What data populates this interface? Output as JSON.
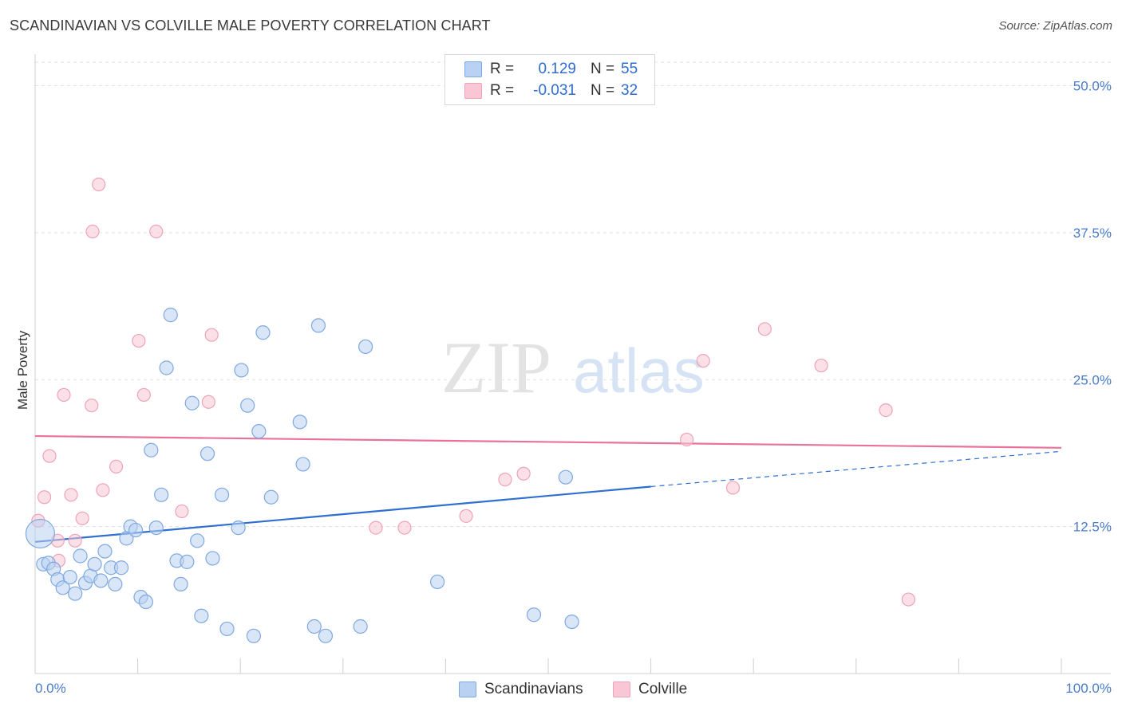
{
  "header": {
    "title": "SCANDINAVIAN VS COLVILLE MALE POVERTY CORRELATION CHART",
    "source": "Source: ZipAtlas.com"
  },
  "watermark": {
    "zip": "ZIP",
    "atlas": "atlas"
  },
  "legend": {
    "rows": [
      {
        "r_label": "R =",
        "r_value": "0.129",
        "n_label": "N =",
        "n_value": "55"
      },
      {
        "r_label": "R =",
        "r_value": "-0.031",
        "n_label": "N =",
        "n_value": "32"
      }
    ]
  },
  "bottom_legend": {
    "a": "Scandinavians",
    "b": "Colville"
  },
  "colors": {
    "blue_fill": "#b9d1f3",
    "blue_stroke": "#7fa8e0",
    "blue_line": "#2f6fd0",
    "pink_fill": "#f8c6d4",
    "pink_stroke": "#eea3b9",
    "pink_line": "#e8739a"
  },
  "chart_data": {
    "type": "scatter",
    "title": "SCANDINAVIAN VS COLVILLE MALE POVERTY CORRELATION CHART",
    "xlabel": "",
    "ylabel": "Male Poverty",
    "xlim": [
      0,
      100
    ],
    "ylim": [
      0,
      52
    ],
    "x_tick_labels": [
      "0.0%",
      "100.0%"
    ],
    "y_ticks": [
      12.5,
      25.0,
      37.5,
      50.0
    ],
    "y_tick_labels": [
      "12.5%",
      "25.0%",
      "37.5%",
      "50.0%"
    ],
    "series": [
      {
        "name": "Scandinavians",
        "r": 0.129,
        "n": 55,
        "trend": {
          "x0": 0,
          "y0": 11.2,
          "x1": 60,
          "y1": 15.9,
          "dashed_to_x": 100,
          "dashed_to_y": 18.9
        },
        "points": [
          [
            0.5,
            11.9,
            "big"
          ],
          [
            0.8,
            9.3
          ],
          [
            1.3,
            9.4
          ],
          [
            1.8,
            8.9
          ],
          [
            2.2,
            8.0
          ],
          [
            2.7,
            7.3
          ],
          [
            3.4,
            8.2
          ],
          [
            3.9,
            6.8
          ],
          [
            4.4,
            10.0
          ],
          [
            4.9,
            7.7
          ],
          [
            5.4,
            8.3
          ],
          [
            5.8,
            9.3
          ],
          [
            6.4,
            7.9
          ],
          [
            6.8,
            10.4
          ],
          [
            7.4,
            9.0
          ],
          [
            7.8,
            7.6
          ],
          [
            8.4,
            9.0
          ],
          [
            8.9,
            11.5
          ],
          [
            9.3,
            12.5
          ],
          [
            9.8,
            12.2
          ],
          [
            10.3,
            6.5
          ],
          [
            10.8,
            6.1
          ],
          [
            11.3,
            19.0
          ],
          [
            11.8,
            12.4
          ],
          [
            12.3,
            15.2
          ],
          [
            12.8,
            26.0
          ],
          [
            13.2,
            30.5
          ],
          [
            13.8,
            9.6
          ],
          [
            14.2,
            7.6
          ],
          [
            14.8,
            9.5
          ],
          [
            15.3,
            23.0
          ],
          [
            15.8,
            11.3
          ],
          [
            16.2,
            4.9
          ],
          [
            16.8,
            18.7
          ],
          [
            17.3,
            9.8
          ],
          [
            18.2,
            15.2
          ],
          [
            18.7,
            3.8
          ],
          [
            19.8,
            12.4
          ],
          [
            20.1,
            25.8
          ],
          [
            20.7,
            22.8
          ],
          [
            21.3,
            3.2
          ],
          [
            21.8,
            20.6
          ],
          [
            22.2,
            29.0
          ],
          [
            23.0,
            15.0
          ],
          [
            25.8,
            21.4
          ],
          [
            26.1,
            17.8
          ],
          [
            27.2,
            4.0
          ],
          [
            27.6,
            29.6
          ],
          [
            28.3,
            3.2
          ],
          [
            31.7,
            4.0
          ],
          [
            32.2,
            27.8
          ],
          [
            39.2,
            7.8
          ],
          [
            48.6,
            5.0
          ],
          [
            51.7,
            16.7
          ],
          [
            52.3,
            4.4
          ]
        ]
      },
      {
        "name": "Colville",
        "r": -0.031,
        "n": 32,
        "trend": {
          "x0": 0,
          "y0": 20.2,
          "x1": 100,
          "y1": 19.2
        },
        "points": [
          [
            0.3,
            13.0
          ],
          [
            0.9,
            15.0
          ],
          [
            1.4,
            18.5
          ],
          [
            2.2,
            11.3
          ],
          [
            2.3,
            9.6
          ],
          [
            2.8,
            23.7
          ],
          [
            3.5,
            15.2
          ],
          [
            3.9,
            11.3
          ],
          [
            4.6,
            13.2
          ],
          [
            5.5,
            22.8
          ],
          [
            5.6,
            37.6
          ],
          [
            6.2,
            41.6
          ],
          [
            6.6,
            15.6
          ],
          [
            7.9,
            17.6
          ],
          [
            10.1,
            28.3
          ],
          [
            10.6,
            23.7
          ],
          [
            11.8,
            37.6
          ],
          [
            14.3,
            13.8
          ],
          [
            16.9,
            23.1
          ],
          [
            17.2,
            28.8
          ],
          [
            33.2,
            12.4
          ],
          [
            36.0,
            12.4
          ],
          [
            42.0,
            13.4
          ],
          [
            45.8,
            16.5
          ],
          [
            47.6,
            17.0
          ],
          [
            63.5,
            19.9
          ],
          [
            65.1,
            26.6
          ],
          [
            68.0,
            15.8
          ],
          [
            71.1,
            29.3
          ],
          [
            76.6,
            26.2
          ],
          [
            82.9,
            22.4
          ],
          [
            85.1,
            6.3
          ]
        ]
      }
    ]
  }
}
